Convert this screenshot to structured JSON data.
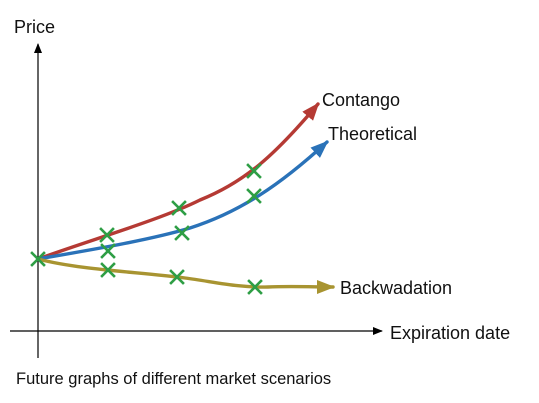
{
  "figure": {
    "y_axis_label": "Price",
    "x_axis_label": "Expiration date",
    "caption": "Future graphs of different market scenarios"
  },
  "curves": [
    {
      "id": "contango",
      "label": "Contango",
      "color": "#b53a34",
      "markers": 4
    },
    {
      "id": "theoretical",
      "label": "Theoretical",
      "color": "#2a72b8",
      "markers": 4
    },
    {
      "id": "backwadation",
      "label": "Backwadation",
      "color": "#a89431",
      "markers": 4
    }
  ],
  "marker": {
    "icon": "x-mark",
    "color": "#2e9e45"
  },
  "axis_color": "#000000"
}
